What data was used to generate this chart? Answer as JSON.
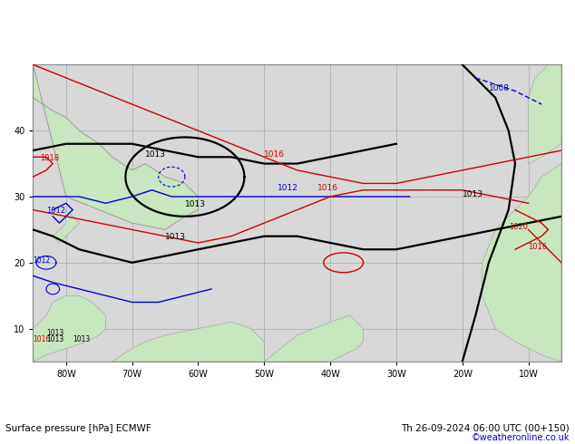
{
  "title_bottom": "Surface pressure [hPa] ECMWF",
  "title_right": "Th 26-09-2024 06:00 UTC (00+150)",
  "credit": "©weatheronline.co.uk",
  "background_ocean": "#d8d8d8",
  "background_land": "#c8e6c0",
  "grid_color": "#aaaaaa",
  "fig_width": 6.34,
  "fig_height": 4.9,
  "dpi": 100,
  "x_min": -85,
  "x_max": -5,
  "y_min": 5,
  "y_max": 50,
  "xticks": [
    -80,
    -70,
    -60,
    -50,
    -40,
    -30,
    -20,
    -10
  ],
  "yticks": [
    10,
    20,
    30,
    40
  ],
  "xlabel_labels": [
    "80W",
    "70W",
    "60W",
    "50W",
    "40W",
    "30W",
    "20W",
    "10W"
  ],
  "ylabel_labels": [
    "10",
    "20",
    "30",
    "40"
  ],
  "isobar_black_color": "#000000",
  "isobar_red_color": "#cc0000",
  "isobar_blue_color": "#0000cc",
  "label_fontsize": 7,
  "bottom_fontsize": 7.5,
  "credit_fontsize": 7,
  "credit_color": "#0000cc"
}
